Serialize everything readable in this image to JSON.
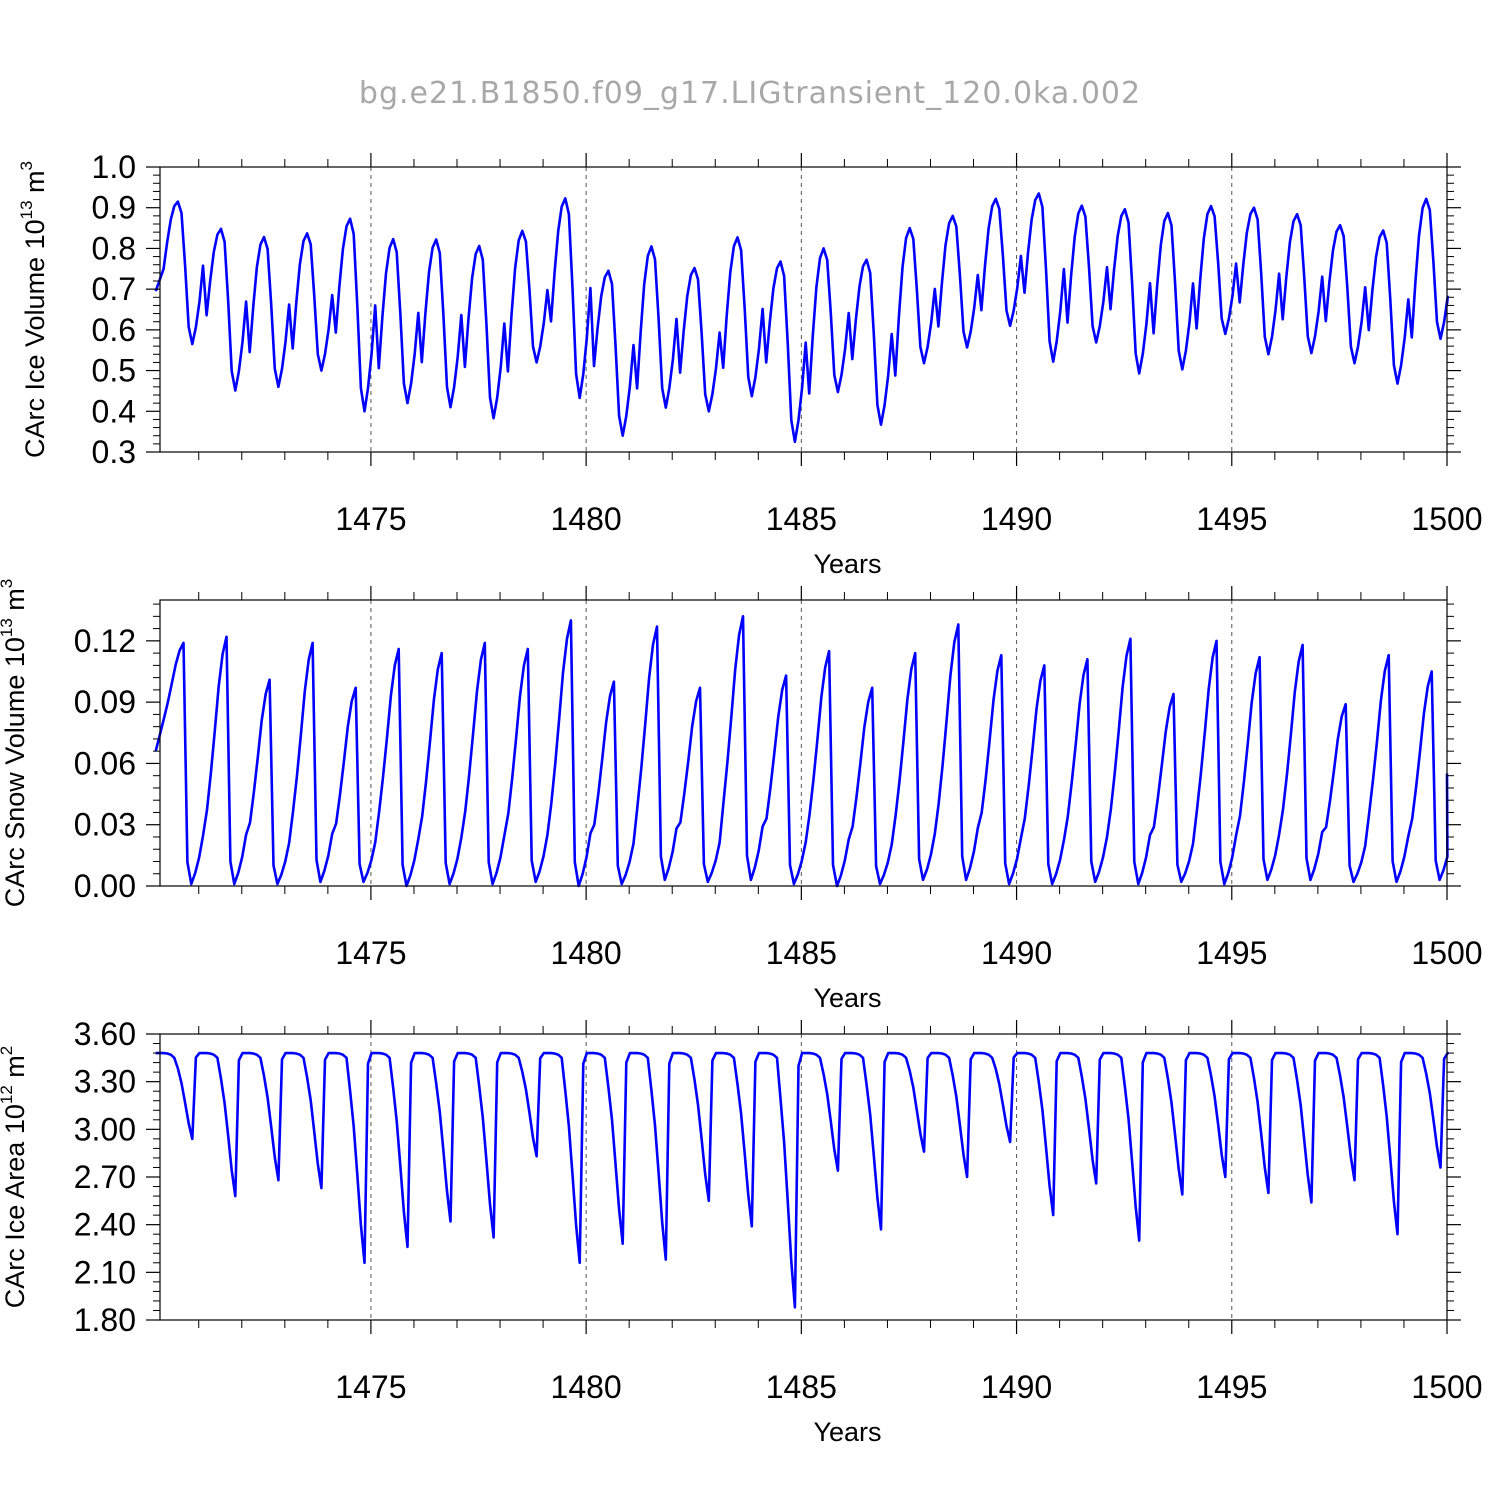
{
  "figure_title": "bg.e21.B1850.f09_g17.LIGtransient_120.0ka.002",
  "chart_data": [
    {
      "type": "line",
      "ylabel": "CArc Ice Volume 10^13 m^3",
      "ylabel_main": "CArc Ice Volume 10",
      "ylabel_exp": "13",
      "ylabel_unit": " m",
      "ylabel_unit_exp": "3",
      "xlabel": "Years",
      "xlim": [
        1470.1,
        1500.0
      ],
      "ylim": [
        0.3,
        1.0
      ],
      "xticks": [
        1475,
        1480,
        1485,
        1490,
        1495,
        1500
      ],
      "xtick_labels": [
        "1475",
        "1480",
        "1485",
        "1490",
        "1495",
        "1500"
      ],
      "yticks": [
        0.3,
        0.4,
        0.5,
        0.6,
        0.7,
        0.8,
        0.9,
        1.0
      ],
      "ytick_labels": [
        "0.3",
        "0.4",
        "0.5",
        "0.6",
        "0.7",
        "0.8",
        "0.9",
        "1.0"
      ],
      "grid": "vertical dashed at major x ticks",
      "color": "#0000ff",
      "maxima": [
        0.915,
        0.848,
        0.828,
        0.837,
        0.873,
        0.823,
        0.822,
        0.806,
        0.843,
        0.923,
        0.745,
        0.805,
        0.752,
        0.827,
        0.768,
        0.8,
        0.772,
        0.85,
        0.88,
        0.922,
        0.935,
        0.905,
        0.896,
        0.887,
        0.904,
        0.9,
        0.884,
        0.857,
        0.844,
        0.922
      ],
      "minima": [
        0.565,
        0.451,
        0.46,
        0.5,
        0.4,
        0.42,
        0.41,
        0.383,
        0.52,
        0.433,
        0.34,
        0.409,
        0.4,
        0.437,
        0.325,
        0.447,
        0.367,
        0.518,
        0.557,
        0.61,
        0.522,
        0.569,
        0.493,
        0.503,
        0.59,
        0.54,
        0.543,
        0.518,
        0.468,
        0.578
      ],
      "start": 0.695,
      "end": 0.663
    },
    {
      "type": "line",
      "ylabel": "CArc Snow Volume 10^13 m^3",
      "ylabel_main": "CArc Snow Volume 10",
      "ylabel_exp": "13",
      "ylabel_unit": " m",
      "ylabel_unit_exp": "3",
      "xlabel": "Years",
      "xlim": [
        1470.1,
        1500.0
      ],
      "ylim": [
        0.0,
        0.14
      ],
      "xticks": [
        1475,
        1480,
        1485,
        1490,
        1495,
        1500
      ],
      "xtick_labels": [
        "1475",
        "1480",
        "1485",
        "1490",
        "1495",
        "1500"
      ],
      "yticks": [
        0.0,
        0.03,
        0.06,
        0.09,
        0.12
      ],
      "ytick_labels": [
        "0.00",
        "0.03",
        "0.06",
        "0.09",
        "0.12"
      ],
      "grid": "vertical dashed at major x ticks",
      "color": "#0000ff",
      "maxima": [
        0.119,
        0.122,
        0.101,
        0.119,
        0.097,
        0.116,
        0.114,
        0.119,
        0.116,
        0.13,
        0.1,
        0.127,
        0.097,
        0.132,
        0.103,
        0.115,
        0.097,
        0.114,
        0.128,
        0.113,
        0.108,
        0.111,
        0.121,
        0.094,
        0.12,
        0.112,
        0.118,
        0.089,
        0.113,
        0.105
      ],
      "minima": [
        0.001,
        0.001,
        0.001,
        0.002,
        0.002,
        0.0,
        0.001,
        0.001,
        0.002,
        0.0,
        0.001,
        0.003,
        0.002,
        0.003,
        0.001,
        0.0,
        0.001,
        0.003,
        0.003,
        0.001,
        0.001,
        0.002,
        0.001,
        0.002,
        0.001,
        0.003,
        0.003,
        0.002,
        0.002,
        0.003
      ],
      "start": 0.066,
      "end": 0.055
    },
    {
      "type": "line",
      "ylabel": "CArc Ice Area 10^12 m^2",
      "ylabel_main": "CArc Ice Area 10",
      "ylabel_exp": "12",
      "ylabel_unit": " m",
      "ylabel_unit_exp": "2",
      "xlabel": "Years",
      "xlim": [
        1470.1,
        1500.0
      ],
      "ylim": [
        1.8,
        3.6
      ],
      "xticks": [
        1475,
        1480,
        1485,
        1490,
        1495,
        1500
      ],
      "xtick_labels": [
        "1475",
        "1480",
        "1485",
        "1490",
        "1495",
        "1500"
      ],
      "yticks": [
        1.8,
        2.1,
        2.4,
        2.7,
        3.0,
        3.3,
        3.6
      ],
      "ytick_labels": [
        "1.80",
        "2.10",
        "2.40",
        "2.70",
        "3.00",
        "3.30",
        "3.60"
      ],
      "grid": "vertical dashed at major x ticks",
      "color": "#0000ff",
      "plateau": 3.48,
      "minima": [
        2.94,
        2.58,
        2.68,
        2.63,
        2.16,
        2.26,
        2.42,
        2.32,
        2.83,
        2.16,
        2.28,
        2.18,
        2.55,
        2.39,
        1.88,
        2.74,
        2.37,
        2.86,
        2.7,
        2.92,
        2.46,
        2.66,
        2.3,
        2.59,
        2.7,
        2.6,
        2.54,
        2.68,
        2.34,
        2.76
      ],
      "start": 3.48,
      "end": 3.48
    }
  ]
}
